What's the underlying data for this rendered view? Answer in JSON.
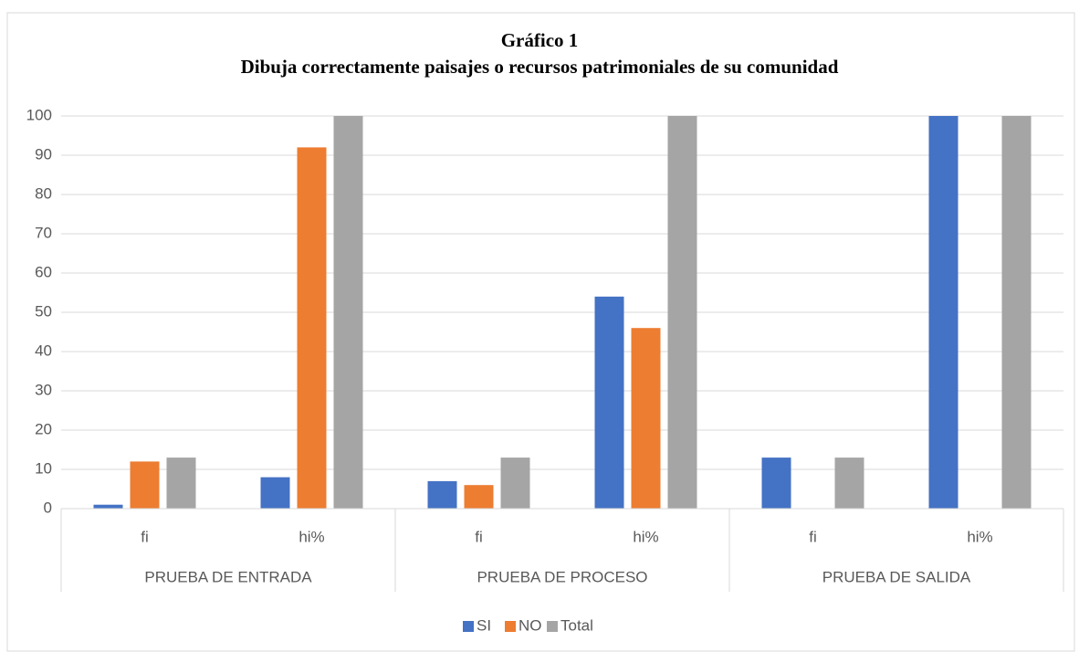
{
  "chart_data": {
    "type": "bar",
    "title": "Gráfico 1",
    "subtitle": "Dibuja correctamente paisajes o recursos patrimoniales de su comunidad",
    "categories": [
      "fi",
      "hi%",
      "fi",
      "hi%",
      "fi",
      "hi%"
    ],
    "groups": [
      "PRUEBA DE ENTRADA",
      "PRUEBA DE PROCESO",
      "PRUEBA DE SALIDA"
    ],
    "series": [
      {
        "name": "SI",
        "color": "#4472c4",
        "values": [
          1,
          8,
          7,
          54,
          13,
          100
        ]
      },
      {
        "name": "NO",
        "color": "#ed7d31",
        "values": [
          12,
          92,
          6,
          46,
          0,
          0
        ]
      },
      {
        "name": "Total",
        "color": "#a5a5a5",
        "values": [
          13,
          100,
          13,
          100,
          13,
          100
        ]
      }
    ],
    "ylim": [
      0,
      100
    ],
    "yticks": [
      0,
      10,
      20,
      30,
      40,
      50,
      60,
      70,
      80,
      90,
      100
    ],
    "grid": true,
    "legend": "bottom"
  }
}
